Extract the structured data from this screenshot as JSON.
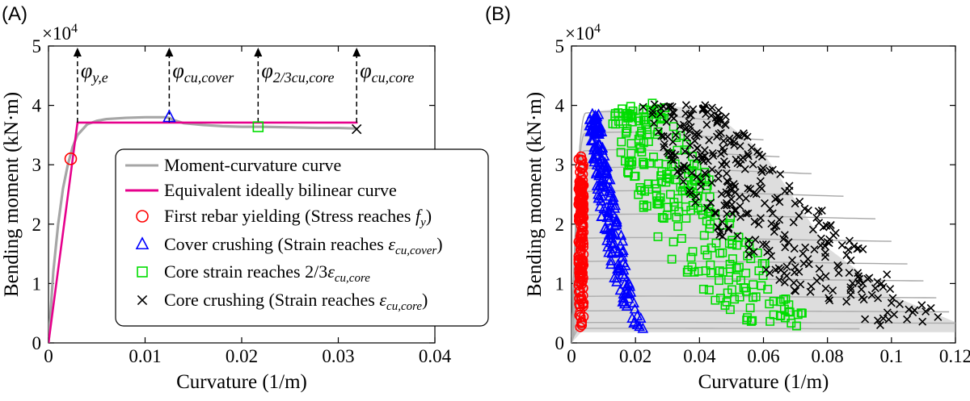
{
  "chart_data": [
    {
      "panel_label": "(A)",
      "type": "line",
      "xlabel": "Curvature (1/m)",
      "ylabel": "Bending moment (kN·m)",
      "xlim": [
        0,
        0.04
      ],
      "ylim": [
        0,
        50000
      ],
      "x_ticks": [
        "0",
        "0.01",
        "0.02",
        "0.03",
        "0.04"
      ],
      "y_ticks": [
        "0",
        "1",
        "2",
        "3",
        "4",
        "5"
      ],
      "y_exponent": "×10",
      "y_exponent_power": "4",
      "grid": false,
      "legend_position": "lower-right",
      "series": [
        {
          "name": "Moment-curvature curve",
          "color": "#a6a6a6",
          "x": [
            0,
            0.0005,
            0.001,
            0.0015,
            0.002,
            0.0025,
            0.003,
            0.004,
            0.005,
            0.006,
            0.008,
            0.01,
            0.012,
            0.0125,
            0.013,
            0.014,
            0.016,
            0.018,
            0.02,
            0.022,
            0.025,
            0.028,
            0.03,
            0.032
          ],
          "y": [
            0,
            12000,
            20000,
            26000,
            30000,
            33000,
            35000,
            36800,
            37400,
            37700,
            37900,
            38000,
            38000,
            37900,
            37500,
            37000,
            36700,
            36500,
            36400,
            36400,
            36300,
            36200,
            36200,
            36100
          ]
        },
        {
          "name": "Equivalent ideally bilinear curve",
          "color": "#e6008c",
          "x": [
            0,
            0.003,
            0.032
          ],
          "y": [
            0,
            37100,
            37100
          ]
        },
        {
          "name": "First rebar yielding (Stress reaches ",
          "name_italic": "f",
          "name_sub": "y",
          "name_end": ")",
          "marker": "circle",
          "color": "#ff0000",
          "x": [
            0.0023
          ],
          "y": [
            31000
          ]
        },
        {
          "name": "Cover crushing (Strain reaches ",
          "name_italic": "ε",
          "name_sub": "cu,cover",
          "name_end": ")",
          "marker": "triangle",
          "color": "#0000ff",
          "x": [
            0.0125
          ],
          "y": [
            38000
          ]
        },
        {
          "name": "Core strain reaches 2/3",
          "name_italic": "ε",
          "name_sub": "cu,core",
          "name_end": "",
          "marker": "square",
          "color": "#00dd00",
          "x": [
            0.0217
          ],
          "y": [
            36400
          ]
        },
        {
          "name": "Core crushing (Strain reaches ",
          "name_italic": "ε",
          "name_sub": "cu,core",
          "name_end": ")",
          "marker": "x",
          "color": "#000000",
          "x": [
            0.0319
          ],
          "y": [
            36000
          ]
        }
      ],
      "annotations": [
        {
          "symbol": "φ",
          "sub": "y,e",
          "x": 0.003
        },
        {
          "symbol": "φ",
          "sub": "cu,cover",
          "x": 0.0125
        },
        {
          "symbol": "φ",
          "sub": "2/3cu,core",
          "x": 0.0217
        },
        {
          "symbol": "φ",
          "sub": "cu,core",
          "x": 0.0319
        }
      ]
    },
    {
      "panel_label": "(B)",
      "type": "scatter",
      "xlabel": "Curvature (1/m)",
      "ylabel": "Bending moment (kN·m)",
      "xlim": [
        0,
        0.12
      ],
      "ylim": [
        0,
        50000
      ],
      "x_ticks": [
        "0",
        "0.02",
        "0.04",
        "0.06",
        "0.08",
        "0.1",
        "0.12"
      ],
      "y_ticks": [
        "0",
        "1",
        "2",
        "3",
        "4",
        "5"
      ],
      "y_exponent": "×10",
      "y_exponent_power": "4",
      "grid": false,
      "curve_envelope": {
        "color": "#a6a6a6",
        "curves": [
          {
            "yield_x": 0.0032,
            "peak": 39500,
            "end_x": 0.044
          },
          {
            "yield_x": 0.003,
            "peak": 36000,
            "end_x": 0.06
          },
          {
            "yield_x": 0.0028,
            "peak": 33000,
            "end_x": 0.065
          },
          {
            "yield_x": 0.0026,
            "peak": 30000,
            "end_x": 0.075
          },
          {
            "yield_x": 0.0025,
            "peak": 26000,
            "end_x": 0.085
          },
          {
            "yield_x": 0.0024,
            "peak": 22000,
            "end_x": 0.095
          },
          {
            "yield_x": 0.0024,
            "peak": 18000,
            "end_x": 0.1
          },
          {
            "yield_x": 0.0023,
            "peak": 14000,
            "end_x": 0.105
          },
          {
            "yield_x": 0.0023,
            "peak": 11000,
            "end_x": 0.11
          },
          {
            "yield_x": 0.0022,
            "peak": 8000,
            "end_x": 0.114
          },
          {
            "yield_x": 0.0022,
            "peak": 5500,
            "end_x": 0.118
          },
          {
            "yield_x": 0.0022,
            "peak": 3500,
            "end_x": 0.12
          },
          {
            "yield_x": 0.0022,
            "peak": 2500,
            "end_x": 0.09
          }
        ]
      },
      "point_clouds": [
        {
          "name": "First rebar yielding",
          "marker": "circle",
          "color": "#ff0000",
          "count": 160,
          "x_range": [
            0.0022,
            0.0038
          ],
          "y_range": [
            2000,
            31500
          ],
          "slope_x_per_kN": 0.0
        },
        {
          "name": "Cover crushing",
          "marker": "triangle",
          "color": "#0000ff",
          "count": 200,
          "x_top": 0.0068,
          "x_bottom": 0.0235,
          "y_range": [
            2100,
            38700
          ],
          "spread": 0.0022
        },
        {
          "name": "Core strain reaches 2/3",
          "marker": "square",
          "color": "#00dd00",
          "count": 260,
          "x_top": 0.02,
          "x_bottom": 0.074,
          "y_range": [
            2500,
            40500
          ],
          "spread": 0.012
        },
        {
          "name": "Core crushing",
          "marker": "x",
          "color": "#000000",
          "count": 340,
          "x_top": 0.034,
          "x_bottom": 0.119,
          "y_range": [
            2500,
            40200
          ],
          "spread": 0.016
        }
      ]
    }
  ]
}
